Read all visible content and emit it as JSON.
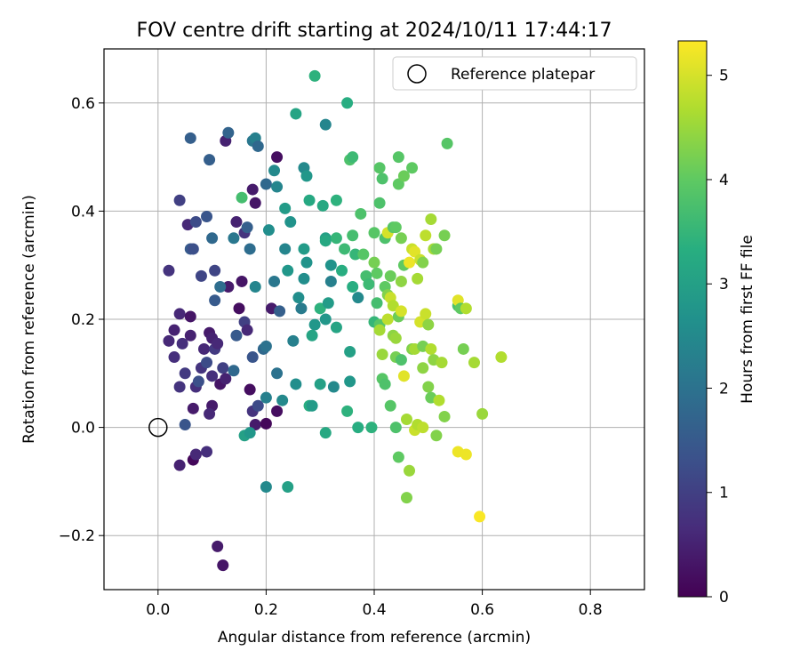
{
  "chart_data": {
    "type": "scatter",
    "title": "FOV centre drift starting at 2024/10/11 17:44:17",
    "xlabel": "Angular distance from reference (arcmin)",
    "ylabel": "Rotation from reference (arcmin)",
    "xlim": [
      -0.1,
      0.9
    ],
    "ylim": [
      -0.3,
      0.7
    ],
    "xticks": [
      0.0,
      0.2,
      0.4,
      0.6,
      0.8
    ],
    "xtick_labels": [
      "0.0",
      "0.2",
      "0.4",
      "0.6",
      "0.8"
    ],
    "yticks": [
      -0.2,
      0.0,
      0.2,
      0.4,
      0.6
    ],
    "ytick_labels": [
      "−0.2",
      "0.0",
      "0.2",
      "0.4",
      "0.6"
    ],
    "grid": true,
    "legend": {
      "placement": "upper right",
      "label": "Reference platepar"
    },
    "reference_point": {
      "x": 0.0,
      "y": 0.0
    },
    "colorbar": {
      "label": "Hours from first FF file",
      "colormap": "viridis",
      "range": [
        0,
        5.33
      ],
      "ticks": [
        0,
        1,
        2,
        3,
        4,
        5
      ],
      "tick_labels": [
        "0",
        "1",
        "2",
        "3",
        "4",
        "5"
      ]
    },
    "points": [
      {
        "x": 0.02,
        "y": 0.16,
        "c": 0.6
      },
      {
        "x": 0.03,
        "y": 0.18,
        "c": 0.5
      },
      {
        "x": 0.03,
        "y": 0.13,
        "c": 0.7
      },
      {
        "x": 0.04,
        "y": 0.21,
        "c": 0.6
      },
      {
        "x": 0.04,
        "y": 0.075,
        "c": 0.8
      },
      {
        "x": 0.045,
        "y": 0.155,
        "c": 0.7
      },
      {
        "x": 0.05,
        "y": 0.1,
        "c": 0.9
      },
      {
        "x": 0.06,
        "y": 0.205,
        "c": 0.3
      },
      {
        "x": 0.06,
        "y": 0.17,
        "c": 0.5
      },
      {
        "x": 0.065,
        "y": 0.035,
        "c": 0.4
      },
      {
        "x": 0.07,
        "y": 0.075,
        "c": 0.7
      },
      {
        "x": 0.075,
        "y": 0.085,
        "c": 1.3
      },
      {
        "x": 0.08,
        "y": 0.11,
        "c": 0.8
      },
      {
        "x": 0.085,
        "y": 0.145,
        "c": 0.6
      },
      {
        "x": 0.09,
        "y": 0.12,
        "c": 1.2
      },
      {
        "x": 0.095,
        "y": 0.175,
        "c": 0.4
      },
      {
        "x": 0.1,
        "y": 0.165,
        "c": 0.5
      },
      {
        "x": 0.1,
        "y": 0.095,
        "c": 0.7
      },
      {
        "x": 0.105,
        "y": 0.145,
        "c": 0.9
      },
      {
        "x": 0.11,
        "y": 0.155,
        "c": 0.6
      },
      {
        "x": 0.115,
        "y": 0.08,
        "c": 0.3
      },
      {
        "x": 0.12,
        "y": 0.11,
        "c": 1.0
      },
      {
        "x": 0.125,
        "y": 0.09,
        "c": 0.5
      },
      {
        "x": 0.13,
        "y": 0.26,
        "c": 0.4
      },
      {
        "x": 0.14,
        "y": 0.105,
        "c": 1.8
      },
      {
        "x": 0.145,
        "y": 0.17,
        "c": 1.5
      },
      {
        "x": 0.15,
        "y": 0.22,
        "c": 0.2
      },
      {
        "x": 0.155,
        "y": 0.27,
        "c": 0.3
      },
      {
        "x": 0.16,
        "y": 0.195,
        "c": 1.0
      },
      {
        "x": 0.165,
        "y": 0.18,
        "c": 0.6
      },
      {
        "x": 0.17,
        "y": 0.07,
        "c": 0.2
      },
      {
        "x": 0.175,
        "y": 0.03,
        "c": 0.8
      },
      {
        "x": 0.18,
        "y": 0.005,
        "c": 0.4
      },
      {
        "x": 0.185,
        "y": 0.04,
        "c": 1.2
      },
      {
        "x": 0.2,
        "y": 0.007,
        "c": 0.1
      },
      {
        "x": 0.02,
        "y": 0.29,
        "c": 0.8
      },
      {
        "x": 0.04,
        "y": 0.42,
        "c": 1.0
      },
      {
        "x": 0.055,
        "y": 0.375,
        "c": 0.6
      },
      {
        "x": 0.06,
        "y": 0.33,
        "c": 1.5
      },
      {
        "x": 0.065,
        "y": 0.33,
        "c": 1.3
      },
      {
        "x": 0.07,
        "y": 0.38,
        "c": 1.2
      },
      {
        "x": 0.08,
        "y": 0.28,
        "c": 1.1
      },
      {
        "x": 0.09,
        "y": 0.39,
        "c": 1.4
      },
      {
        "x": 0.095,
        "y": 0.495,
        "c": 1.6
      },
      {
        "x": 0.1,
        "y": 0.35,
        "c": 1.8
      },
      {
        "x": 0.105,
        "y": 0.29,
        "c": 1.1
      },
      {
        "x": 0.105,
        "y": 0.235,
        "c": 1.5
      },
      {
        "x": 0.115,
        "y": 0.26,
        "c": 1.9
      },
      {
        "x": 0.125,
        "y": 0.53,
        "c": 0.5
      },
      {
        "x": 0.13,
        "y": 0.545,
        "c": 1.7
      },
      {
        "x": 0.14,
        "y": 0.35,
        "c": 2.1
      },
      {
        "x": 0.145,
        "y": 0.38,
        "c": 0.5
      },
      {
        "x": 0.155,
        "y": 0.425,
        "c": 3.7
      },
      {
        "x": 0.16,
        "y": 0.36,
        "c": 0.8
      },
      {
        "x": 0.165,
        "y": 0.37,
        "c": 1.6
      },
      {
        "x": 0.17,
        "y": 0.33,
        "c": 1.9
      },
      {
        "x": 0.175,
        "y": 0.53,
        "c": 2.1
      },
      {
        "x": 0.18,
        "y": 0.535,
        "c": 2.3
      },
      {
        "x": 0.175,
        "y": 0.44,
        "c": 0.4
      },
      {
        "x": 0.18,
        "y": 0.415,
        "c": 0.3
      },
      {
        "x": 0.185,
        "y": 0.52,
        "c": 1.8
      },
      {
        "x": 0.06,
        "y": 0.535,
        "c": 1.6
      },
      {
        "x": 0.05,
        "y": 0.005,
        "c": 1.4
      },
      {
        "x": 0.04,
        "y": -0.07,
        "c": 0.5
      },
      {
        "x": 0.065,
        "y": -0.06,
        "c": 0.1
      },
      {
        "x": 0.07,
        "y": -0.05,
        "c": 0.6
      },
      {
        "x": 0.09,
        "y": -0.045,
        "c": 0.7
      },
      {
        "x": 0.11,
        "y": -0.22,
        "c": 0.4
      },
      {
        "x": 0.12,
        "y": -0.255,
        "c": 0.3
      },
      {
        "x": 0.1,
        "y": 0.04,
        "c": 0.4
      },
      {
        "x": 0.095,
        "y": 0.025,
        "c": 0.6
      },
      {
        "x": 0.175,
        "y": 0.13,
        "c": 1.4
      },
      {
        "x": 0.18,
        "y": 0.26,
        "c": 2.4
      },
      {
        "x": 0.16,
        "y": -0.015,
        "c": 3.0
      },
      {
        "x": 0.17,
        "y": -0.01,
        "c": 2.8
      },
      {
        "x": 0.2,
        "y": 0.055,
        "c": 2.3
      },
      {
        "x": 0.2,
        "y": 0.45,
        "c": 1.8
      },
      {
        "x": 0.205,
        "y": 0.365,
        "c": 2.6
      },
      {
        "x": 0.21,
        "y": 0.22,
        "c": 0.4
      },
      {
        "x": 0.215,
        "y": 0.27,
        "c": 2.1
      },
      {
        "x": 0.215,
        "y": 0.475,
        "c": 2.5
      },
      {
        "x": 0.22,
        "y": 0.445,
        "c": 2.4
      },
      {
        "x": 0.22,
        "y": 0.5,
        "c": 0.2
      },
      {
        "x": 0.225,
        "y": 0.215,
        "c": 1.6
      },
      {
        "x": 0.23,
        "y": 0.05,
        "c": 2.5
      },
      {
        "x": 0.235,
        "y": 0.405,
        "c": 2.9
      },
      {
        "x": 0.24,
        "y": 0.29,
        "c": 2.8
      },
      {
        "x": 0.245,
        "y": 0.38,
        "c": 2.7
      },
      {
        "x": 0.25,
        "y": 0.16,
        "c": 2.3
      },
      {
        "x": 0.255,
        "y": 0.58,
        "c": 3.1
      },
      {
        "x": 0.255,
        "y": 0.08,
        "c": 2.6
      },
      {
        "x": 0.26,
        "y": 0.24,
        "c": 2.6
      },
      {
        "x": 0.265,
        "y": 0.22,
        "c": 2.2
      },
      {
        "x": 0.27,
        "y": 0.33,
        "c": 2.9
      },
      {
        "x": 0.27,
        "y": 0.48,
        "c": 2.5
      },
      {
        "x": 0.275,
        "y": 0.465,
        "c": 2.8
      },
      {
        "x": 0.275,
        "y": 0.305,
        "c": 2.7
      },
      {
        "x": 0.28,
        "y": 0.04,
        "c": 3.3
      },
      {
        "x": 0.285,
        "y": 0.04,
        "c": 2.9
      },
      {
        "x": 0.29,
        "y": 0.19,
        "c": 2.8
      },
      {
        "x": 0.29,
        "y": 0.65,
        "c": 3.4
      },
      {
        "x": 0.28,
        "y": 0.42,
        "c": 3.2
      },
      {
        "x": 0.285,
        "y": 0.17,
        "c": 3.1
      },
      {
        "x": 0.3,
        "y": 0.22,
        "c": 3.4
      },
      {
        "x": 0.3,
        "y": 0.08,
        "c": 3.0
      },
      {
        "x": 0.305,
        "y": 0.41,
        "c": 3.2
      },
      {
        "x": 0.31,
        "y": 0.35,
        "c": 3.0
      },
      {
        "x": 0.31,
        "y": 0.2,
        "c": 2.8
      },
      {
        "x": 0.31,
        "y": 0.56,
        "c": 2.4
      },
      {
        "x": 0.31,
        "y": -0.01,
        "c": 3.2
      },
      {
        "x": 0.315,
        "y": 0.23,
        "c": 2.9
      },
      {
        "x": 0.32,
        "y": 0.27,
        "c": 2.3
      },
      {
        "x": 0.32,
        "y": 0.3,
        "c": 2.7
      },
      {
        "x": 0.325,
        "y": 0.075,
        "c": 2.5
      },
      {
        "x": 0.33,
        "y": 0.35,
        "c": 3.5
      },
      {
        "x": 0.33,
        "y": 0.185,
        "c": 3.1
      },
      {
        "x": 0.34,
        "y": 0.29,
        "c": 3.3
      },
      {
        "x": 0.345,
        "y": 0.33,
        "c": 3.6
      },
      {
        "x": 0.35,
        "y": 0.03,
        "c": 3.4
      },
      {
        "x": 0.35,
        "y": 0.6,
        "c": 3.3
      },
      {
        "x": 0.355,
        "y": 0.495,
        "c": 3.8
      },
      {
        "x": 0.355,
        "y": 0.14,
        "c": 3.0
      },
      {
        "x": 0.355,
        "y": 0.085,
        "c": 2.8
      },
      {
        "x": 0.36,
        "y": 0.26,
        "c": 3.3
      },
      {
        "x": 0.36,
        "y": 0.355,
        "c": 3.7
      },
      {
        "x": 0.365,
        "y": 0.32,
        "c": 3.5
      },
      {
        "x": 0.37,
        "y": 0.24,
        "c": 2.5
      },
      {
        "x": 0.37,
        "y": 0.0,
        "c": 3.3
      },
      {
        "x": 0.375,
        "y": 0.395,
        "c": 3.8
      },
      {
        "x": 0.38,
        "y": 0.32,
        "c": 3.9
      },
      {
        "x": 0.385,
        "y": 0.28,
        "c": 3.7
      },
      {
        "x": 0.39,
        "y": 0.265,
        "c": 3.6
      },
      {
        "x": 0.395,
        "y": 0.0,
        "c": 3.4
      },
      {
        "x": 0.4,
        "y": 0.36,
        "c": 3.9
      },
      {
        "x": 0.4,
        "y": 0.195,
        "c": 3.5
      },
      {
        "x": 0.4,
        "y": 0.305,
        "c": 4.2
      },
      {
        "x": 0.405,
        "y": 0.285,
        "c": 4.0
      },
      {
        "x": 0.405,
        "y": 0.23,
        "c": 3.7
      },
      {
        "x": 0.41,
        "y": 0.19,
        "c": 3.9
      },
      {
        "x": 0.41,
        "y": 0.48,
        "c": 3.9
      },
      {
        "x": 0.41,
        "y": 0.18,
        "c": 4.6
      },
      {
        "x": 0.415,
        "y": 0.46,
        "c": 3.8
      },
      {
        "x": 0.415,
        "y": 0.135,
        "c": 4.5
      },
      {
        "x": 0.415,
        "y": 0.09,
        "c": 3.9
      },
      {
        "x": 0.42,
        "y": 0.35,
        "c": 3.8
      },
      {
        "x": 0.42,
        "y": 0.26,
        "c": 4.0
      },
      {
        "x": 0.42,
        "y": 0.08,
        "c": 3.8
      },
      {
        "x": 0.425,
        "y": 0.36,
        "c": 5.0
      },
      {
        "x": 0.425,
        "y": 0.2,
        "c": 4.8
      },
      {
        "x": 0.425,
        "y": 0.245,
        "c": 4.3
      },
      {
        "x": 0.43,
        "y": 0.24,
        "c": 4.9
      },
      {
        "x": 0.43,
        "y": 0.04,
        "c": 3.9
      },
      {
        "x": 0.43,
        "y": 0.28,
        "c": 4.1
      },
      {
        "x": 0.435,
        "y": 0.37,
        "c": 3.9
      },
      {
        "x": 0.435,
        "y": 0.17,
        "c": 4.4
      },
      {
        "x": 0.435,
        "y": 0.225,
        "c": 4.7
      },
      {
        "x": 0.44,
        "y": 0.0,
        "c": 3.8
      },
      {
        "x": 0.44,
        "y": 0.37,
        "c": 4.0
      },
      {
        "x": 0.44,
        "y": 0.13,
        "c": 4.2
      },
      {
        "x": 0.44,
        "y": 0.165,
        "c": 4.5
      },
      {
        "x": 0.445,
        "y": 0.45,
        "c": 4.0
      },
      {
        "x": 0.445,
        "y": 0.205,
        "c": 4.1
      },
      {
        "x": 0.445,
        "y": -0.055,
        "c": 4.0
      },
      {
        "x": 0.445,
        "y": 0.5,
        "c": 3.9
      },
      {
        "x": 0.45,
        "y": 0.27,
        "c": 4.4
      },
      {
        "x": 0.45,
        "y": 0.215,
        "c": 5.0
      },
      {
        "x": 0.45,
        "y": 0.35,
        "c": 4.2
      },
      {
        "x": 0.45,
        "y": 0.125,
        "c": 3.8
      },
      {
        "x": 0.455,
        "y": 0.095,
        "c": 5.1
      },
      {
        "x": 0.455,
        "y": 0.3,
        "c": 4.0
      },
      {
        "x": 0.455,
        "y": 0.465,
        "c": 4.1
      },
      {
        "x": 0.46,
        "y": -0.13,
        "c": 4.3
      },
      {
        "x": 0.46,
        "y": 0.015,
        "c": 4.6
      },
      {
        "x": 0.465,
        "y": 0.305,
        "c": 5.2
      },
      {
        "x": 0.465,
        "y": -0.08,
        "c": 4.5
      },
      {
        "x": 0.47,
        "y": 0.33,
        "c": 4.9
      },
      {
        "x": 0.47,
        "y": 0.145,
        "c": 4.3
      },
      {
        "x": 0.47,
        "y": 0.48,
        "c": 4.0
      },
      {
        "x": 0.475,
        "y": 0.145,
        "c": 4.6
      },
      {
        "x": 0.475,
        "y": 0.325,
        "c": 5.1
      },
      {
        "x": 0.475,
        "y": -0.005,
        "c": 4.9
      },
      {
        "x": 0.48,
        "y": 0.005,
        "c": 4.7
      },
      {
        "x": 0.48,
        "y": 0.275,
        "c": 4.6
      },
      {
        "x": 0.485,
        "y": 0.31,
        "c": 4.9
      },
      {
        "x": 0.485,
        "y": 0.195,
        "c": 5.0
      },
      {
        "x": 0.49,
        "y": 0.0,
        "c": 4.8
      },
      {
        "x": 0.49,
        "y": 0.15,
        "c": 4.2
      },
      {
        "x": 0.49,
        "y": 0.305,
        "c": 4.3
      },
      {
        "x": 0.49,
        "y": 0.11,
        "c": 4.4
      },
      {
        "x": 0.495,
        "y": 0.21,
        "c": 4.9
      },
      {
        "x": 0.495,
        "y": 0.355,
        "c": 4.8
      },
      {
        "x": 0.5,
        "y": 0.19,
        "c": 4.4
      },
      {
        "x": 0.5,
        "y": 0.075,
        "c": 4.3
      },
      {
        "x": 0.505,
        "y": 0.145,
        "c": 4.7
      },
      {
        "x": 0.505,
        "y": 0.385,
        "c": 4.6
      },
      {
        "x": 0.505,
        "y": 0.055,
        "c": 4.1
      },
      {
        "x": 0.51,
        "y": 0.125,
        "c": 4.4
      },
      {
        "x": 0.51,
        "y": 0.33,
        "c": 4.6
      },
      {
        "x": 0.515,
        "y": 0.33,
        "c": 4.2
      },
      {
        "x": 0.515,
        "y": -0.015,
        "c": 4.3
      },
      {
        "x": 0.52,
        "y": 0.05,
        "c": 4.7
      },
      {
        "x": 0.525,
        "y": 0.12,
        "c": 4.6
      },
      {
        "x": 0.53,
        "y": 0.02,
        "c": 4.3
      },
      {
        "x": 0.53,
        "y": 0.355,
        "c": 4.2
      },
      {
        "x": 0.535,
        "y": 0.525,
        "c": 3.9
      },
      {
        "x": 0.555,
        "y": 0.225,
        "c": 3.8
      },
      {
        "x": 0.555,
        "y": 0.235,
        "c": 5.1
      },
      {
        "x": 0.555,
        "y": -0.045,
        "c": 5.2
      },
      {
        "x": 0.56,
        "y": 0.22,
        "c": 4.0
      },
      {
        "x": 0.565,
        "y": 0.145,
        "c": 4.2
      },
      {
        "x": 0.57,
        "y": 0.22,
        "c": 4.7
      },
      {
        "x": 0.57,
        "y": -0.05,
        "c": 5.2
      },
      {
        "x": 0.585,
        "y": 0.12,
        "c": 4.6
      },
      {
        "x": 0.595,
        "y": -0.165,
        "c": 5.3
      },
      {
        "x": 0.6,
        "y": 0.025,
        "c": 4.5
      },
      {
        "x": 0.635,
        "y": 0.13,
        "c": 4.7
      },
      {
        "x": 0.24,
        "y": -0.11,
        "c": 3.0
      },
      {
        "x": 0.2,
        "y": -0.11,
        "c": 2.5
      },
      {
        "x": 0.22,
        "y": 0.1,
        "c": 2.0
      },
      {
        "x": 0.195,
        "y": 0.145,
        "c": 1.8
      },
      {
        "x": 0.2,
        "y": 0.15,
        "c": 2.0
      },
      {
        "x": 0.22,
        "y": 0.03,
        "c": 0.2
      },
      {
        "x": 0.27,
        "y": 0.275,
        "c": 2.6
      },
      {
        "x": 0.235,
        "y": 0.33,
        "c": 2.4
      },
      {
        "x": 0.36,
        "y": 0.5,
        "c": 3.6
      },
      {
        "x": 0.33,
        "y": 0.42,
        "c": 3.4
      },
      {
        "x": 0.41,
        "y": 0.415,
        "c": 3.8
      },
      {
        "x": 0.31,
        "y": 0.345,
        "c": 3.2
      }
    ]
  }
}
